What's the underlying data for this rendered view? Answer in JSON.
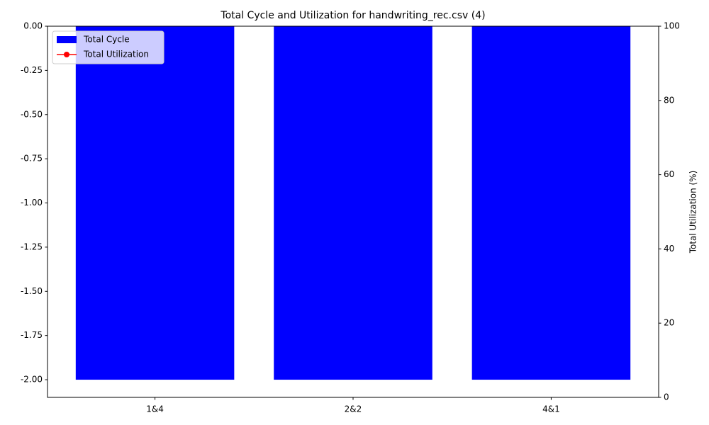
{
  "chart_data": {
    "type": "bar",
    "title": "Total Cycle and Utilization for handwriting_rec.csv (4)",
    "categories": [
      "1&4",
      "2&2",
      "4&1"
    ],
    "series": [
      {
        "name": "Total Cycle",
        "color": "#0000ff",
        "values": [
          -2,
          -2,
          -2
        ]
      },
      {
        "name": "Total Utilization",
        "color": "#ff0000",
        "axis": "y2",
        "type": "line",
        "values": [
          null,
          null,
          null
        ]
      }
    ],
    "y2label": "Total Utilization (%)",
    "ylim": [
      -2.1,
      0
    ],
    "yticks": [
      {
        "value": 0,
        "label": "0.00"
      },
      {
        "value": -0.25,
        "label": "-0.25"
      },
      {
        "value": -0.5,
        "label": "-0.50"
      },
      {
        "value": -0.75,
        "label": "-0.75"
      },
      {
        "value": -1,
        "label": "-1.00"
      },
      {
        "value": -1.25,
        "label": "-1.25"
      },
      {
        "value": -1.5,
        "label": "-1.50"
      },
      {
        "value": -1.75,
        "label": "-1.75"
      },
      {
        "value": -2,
        "label": "-2.00"
      }
    ],
    "y2lim": [
      0,
      100
    ],
    "y2ticks": [
      0,
      20,
      40,
      60,
      80,
      100
    ],
    "legend": "upper left"
  }
}
